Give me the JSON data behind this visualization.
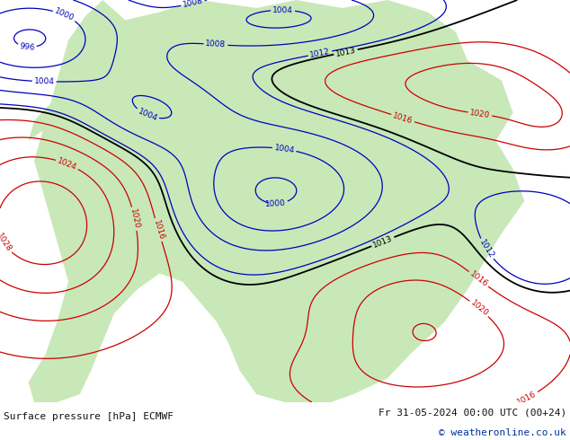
{
  "title_left": "Surface pressure [hPa] ECMWF",
  "title_right": "Fr 31-05-2024 00:00 UTC (00+24)",
  "copyright": "© weatheronline.co.uk",
  "bg_color": "#d8d8d8",
  "ocean_color": "#d0d0d8",
  "land_color": "#c8e8b8",
  "footer_bg": "#ffffff",
  "fig_width": 6.34,
  "fig_height": 4.9,
  "dpi": 100,
  "footer_text_color": "#111111",
  "contour_blue_color": "#0000bb",
  "contour_red_color": "#cc0000",
  "contour_black_color": "#000000",
  "label_fontsize": 6.5,
  "footer_fontsize": 8.0,
  "copyright_fontsize": 8.0,
  "copyright_color": "#003399"
}
